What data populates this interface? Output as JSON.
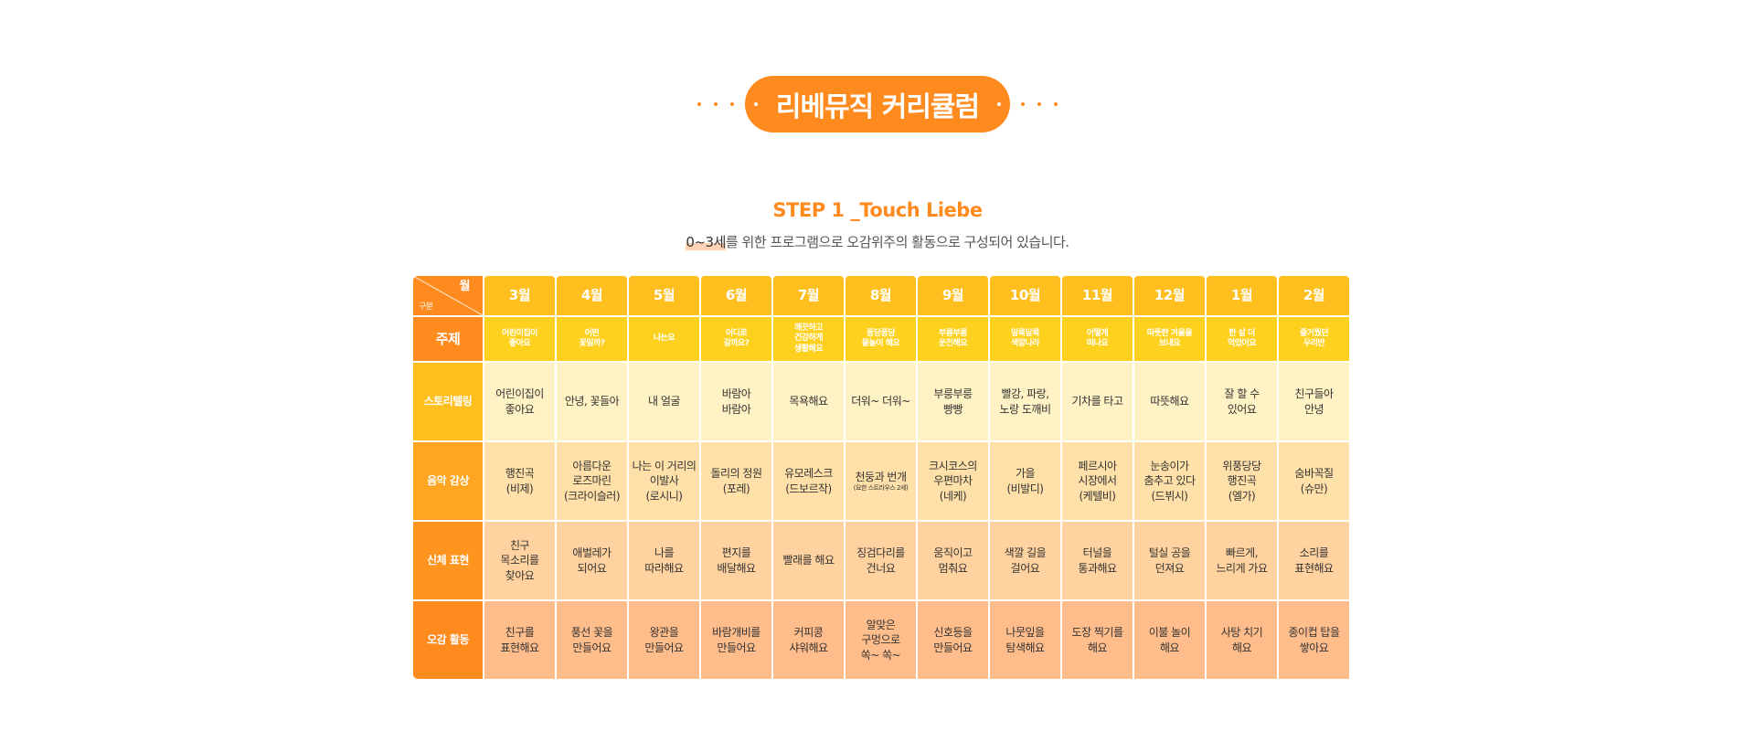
{
  "title": "리베뮤직 커리큘럼",
  "step_title": "STEP 1 _Touch Liebe",
  "description_highlight": "0~3세",
  "description_rest": "를 위한 프로그램으로 오감위주의 활동으로 구성되어 있습니다.",
  "table": {
    "corner_month": "월",
    "corner_category": "구분",
    "months": [
      "3월",
      "4월",
      "5월",
      "6월",
      "7월",
      "8월",
      "9월",
      "10월",
      "11월",
      "12월",
      "1월",
      "2월"
    ],
    "row_headers": [
      "주제",
      "스토리텔링",
      "음악 감상",
      "신체 표현",
      "오감 활동"
    ],
    "themes": [
      "어린이집이\n좋아요",
      "어떤\n꽃일까?",
      "나는요",
      "어디로\n갈까요?",
      "깨끗하고\n건강하게\n생활해요",
      "퐁당퐁당\n물놀이 해요",
      "부릉부릉\n운전해요",
      "알록달록\n색깔나라",
      "어떻게\n떠나요",
      "따뜻한 겨울을\n보내요",
      "한 살 더\n먹었어요",
      "즐거웠던\n우리반"
    ],
    "storytelling": [
      "어린이집이\n좋아요",
      "안녕, 꽃들아",
      "내 얼굴",
      "바람아\n바람아",
      "목욕해요",
      "더워~ 더워~",
      "부릉부릉\n빵빵",
      "빨강, 파랑,\n노랑 도깨비",
      "기차를 타고",
      "따뜻해요",
      "잘 할 수\n있어요",
      "친구들아\n안녕"
    ],
    "music": [
      "행진곡\n(비제)",
      "아름다운\n로즈마린\n(크라이슬러)",
      "나는 이 거리의\n이발사\n(로시니)",
      "돌리의 정원\n(포레)",
      "유모레스크\n(드보르작)",
      "천둥과 번개",
      "크시코스의\n우편마차\n(네케)",
      "가을\n(비발디)",
      "페르시아\n시장에서\n(케텔비)",
      "눈송이가\n춤추고 있다\n(드뷔시)",
      "위풍당당\n행진곡\n(엘가)",
      "숨바꼭질\n(슈만)"
    ],
    "music_aug_note": "(요한 스트라우스 2세)",
    "body": [
      "친구\n목소리를\n찾아요",
      "애벌레가\n되어요",
      "나를\n따라해요",
      "편지를\n배달해요",
      "빨래를 해요",
      "징검다리를\n건너요",
      "움직이고\n멈춰요",
      "색깔 길을\n걸어요",
      "터널을\n통과해요",
      "털실 공을\n던져요",
      "빠르게,\n느리게 가요",
      "소리를\n표현해요"
    ],
    "senses": [
      "친구를\n표현해요",
      "풍선 꽃을\n만들어요",
      "왕관을\n만들어요",
      "바람개비를\n만들어요",
      "커피콩\n샤워해요",
      "알맞은\n구멍으로\n쏙~ 쏙~",
      "신호등을\n만들어요",
      "나뭇잎을\n탐색해요",
      "도장 찍기를\n해요",
      "이불 놀이\n해요",
      "사탕 치기\n해요",
      "종이컵 탑을\n쌓아요"
    ]
  },
  "colors": {
    "accent": "#ff8a1e",
    "month_header": "#ffbf1f",
    "theme_row": "#ffd11f"
  }
}
